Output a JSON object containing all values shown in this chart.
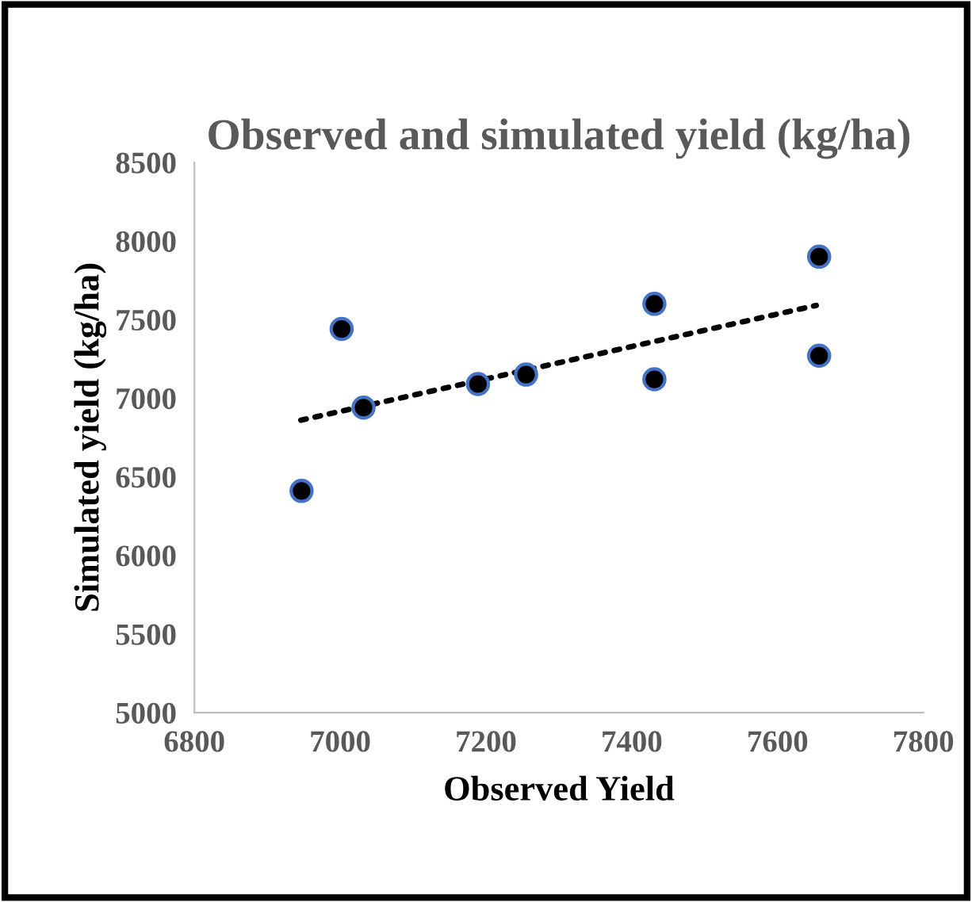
{
  "chart_data": {
    "type": "scatter",
    "title": "Observed and simulated yield (kg/ha)",
    "xlabel": "Observed Yield",
    "ylabel": "Simulated yield (kg/ha)",
    "series": [
      {
        "color": "#000000",
        "x": [
          6947,
          7002,
          7032,
          7189,
          7255,
          7431,
          7431,
          7657,
          7657
        ],
        "values": [
          6410,
          7440,
          6940,
          7090,
          7150,
          7600,
          7120,
          7900,
          7270
        ]
      },
      {
        "type": "line",
        "color": "#000000",
        "line_style": "dotted",
        "marker": "none",
        "x": [
          6946,
          7653
        ],
        "values": [
          6860,
          7590
        ]
      }
    ],
    "xlim": [
      6800,
      7800
    ],
    "xticks": [
      6800,
      7000,
      7200,
      7400,
      7600,
      7800
    ],
    "ylim": [
      5000,
      8500
    ],
    "yticks": [
      5000,
      5500,
      6000,
      6500,
      7000,
      7500,
      8000,
      8500
    ],
    "marker": "circle",
    "grid": false,
    "legend": false
  }
}
